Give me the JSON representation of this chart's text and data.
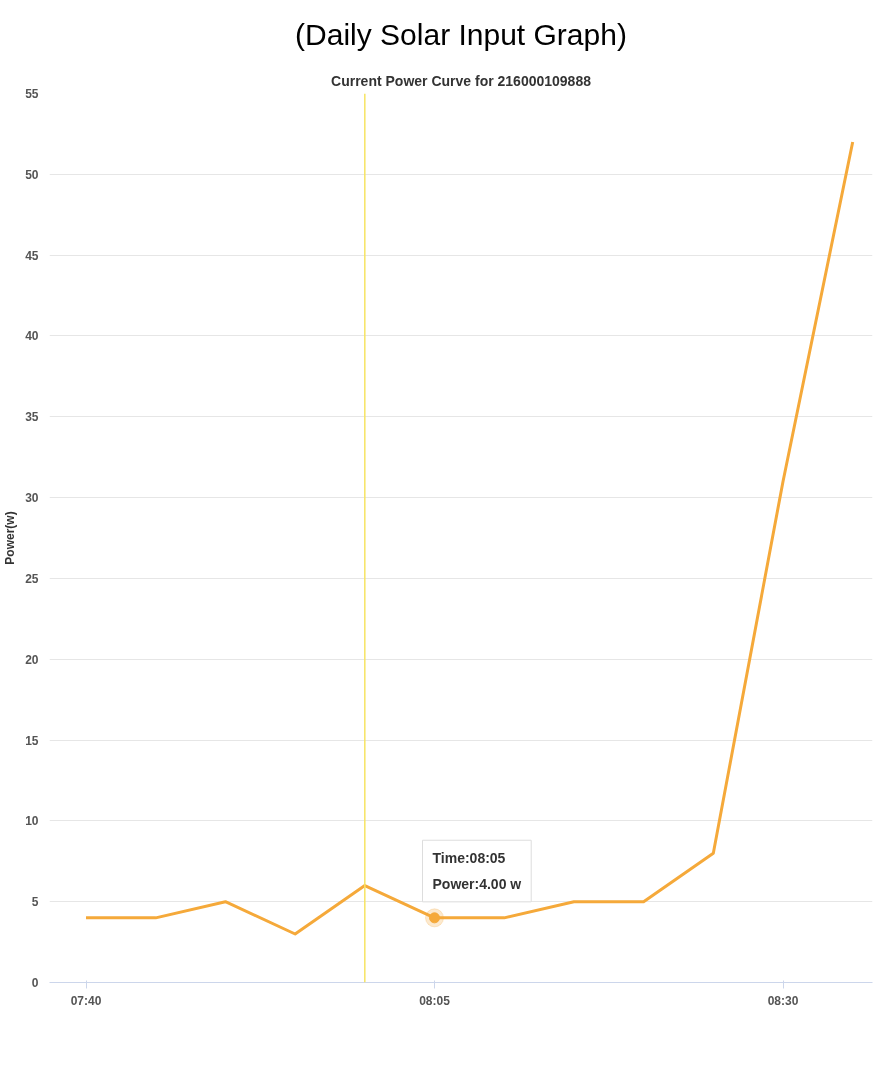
{
  "chart_data": {
    "type": "line",
    "title": "(Daily Solar Input Graph)",
    "subtitle": "Current Power Curve for 216000109888",
    "ylabel": "Power(w)",
    "x": [
      7.666667,
      7.75,
      7.833333,
      7.916667,
      8.0,
      8.083333,
      8.166667,
      8.25,
      8.333333,
      8.416667,
      8.5,
      8.583333
    ],
    "series": [
      {
        "color": "#f5a93a",
        "values": [
          4,
          4,
          5,
          3,
          6,
          4,
          4,
          5,
          5,
          8,
          31,
          52
        ]
      }
    ],
    "xlim": [
      7.623,
      8.607
    ],
    "ylim": [
      0,
      55
    ],
    "xticks": [
      {
        "value": 7.666667,
        "label": "07:40"
      },
      {
        "value": 8.083333,
        "label": "08:05"
      },
      {
        "value": 8.5,
        "label": "08:30"
      }
    ],
    "yticks": [
      0,
      5,
      10,
      15,
      20,
      25,
      30,
      35,
      40,
      45,
      50,
      55
    ],
    "grid": "y",
    "marker": "none",
    "line_style": "solid",
    "ref_lines": [
      {
        "axis": "x",
        "value": 8.0,
        "color": "#f7e463"
      }
    ],
    "annotations": [
      {
        "text": "Time:08:05\nPower:4.00 w",
        "x": 8.083333,
        "y": 4
      }
    ]
  }
}
